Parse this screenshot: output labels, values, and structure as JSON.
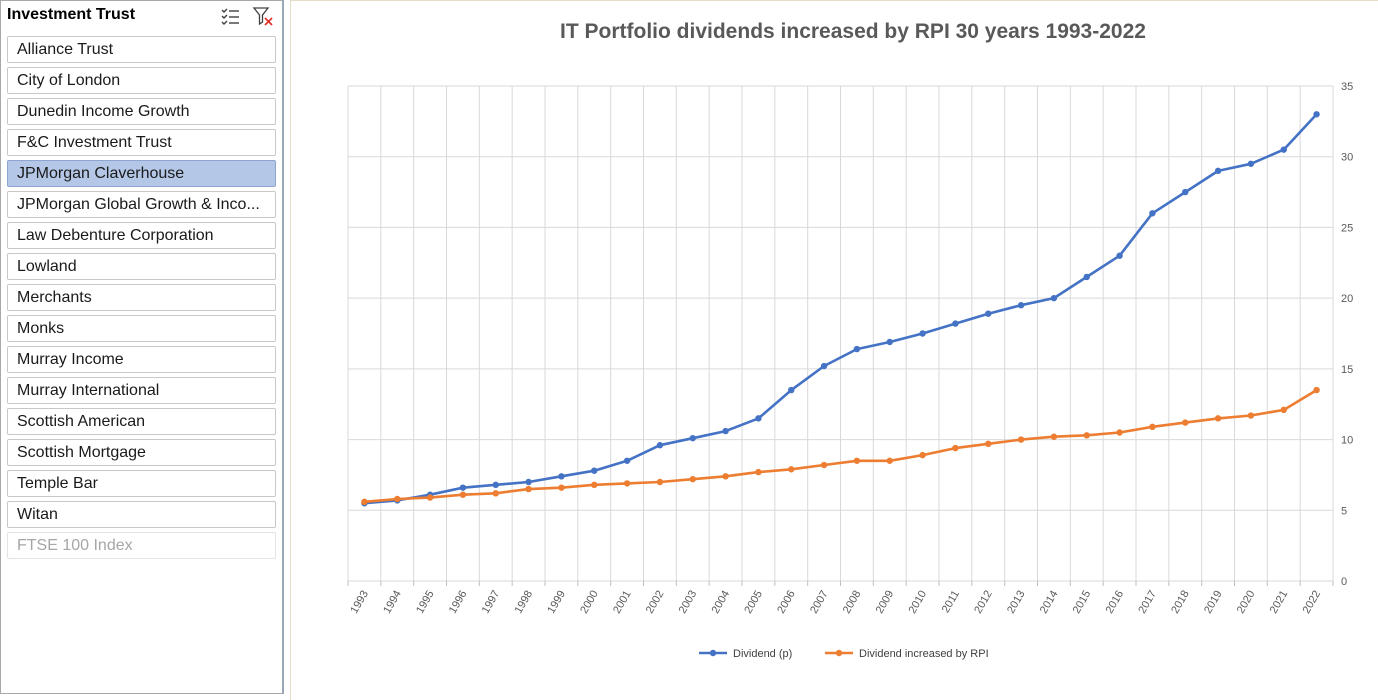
{
  "slicer": {
    "title": "Investment Trust",
    "multiselect_icon": "multi-select-icon",
    "clear_filter_icon": "clear-filter-icon",
    "items": [
      {
        "label": "Alliance Trust",
        "state": "normal"
      },
      {
        "label": "City of London",
        "state": "normal"
      },
      {
        "label": "Dunedin Income Growth",
        "state": "normal"
      },
      {
        "label": "F&C Investment Trust",
        "state": "normal"
      },
      {
        "label": "JPMorgan Claverhouse",
        "state": "selected"
      },
      {
        "label": "JPMorgan Global Growth & Inco...",
        "state": "normal"
      },
      {
        "label": "Law Debenture Corporation",
        "state": "normal"
      },
      {
        "label": "Lowland",
        "state": "normal"
      },
      {
        "label": "Merchants",
        "state": "normal"
      },
      {
        "label": "Monks",
        "state": "normal"
      },
      {
        "label": "Murray Income",
        "state": "normal"
      },
      {
        "label": "Murray International",
        "state": "normal"
      },
      {
        "label": "Scottish American",
        "state": "normal"
      },
      {
        "label": "Scottish Mortgage",
        "state": "normal"
      },
      {
        "label": "Temple Bar",
        "state": "normal"
      },
      {
        "label": "Witan",
        "state": "normal"
      },
      {
        "label": "FTSE 100 Index",
        "state": "nodata"
      }
    ]
  },
  "colors": {
    "series1": "#4472c4",
    "series2": "#ed7d31",
    "selected": "#b4c7e7",
    "grid": "#d9d9d9"
  },
  "chart_data": {
    "type": "line",
    "title": "IT Portfolio dividends increased by RPI 30 years 1993-2022",
    "categories": [
      "1993",
      "1994",
      "1995",
      "1996",
      "1997",
      "1998",
      "1999",
      "2000",
      "2001",
      "2002",
      "2003",
      "2004",
      "2005",
      "2006",
      "2007",
      "2008",
      "2009",
      "2010",
      "2011",
      "2012",
      "2013",
      "2014",
      "2015",
      "2016",
      "2017",
      "2018",
      "2019",
      "2020",
      "2021",
      "2022"
    ],
    "series": [
      {
        "name": "Dividend (p)",
        "values": [
          5.5,
          5.7,
          6.1,
          6.6,
          6.8,
          7.0,
          7.4,
          7.8,
          8.5,
          9.6,
          10.1,
          10.6,
          11.5,
          13.5,
          15.2,
          16.4,
          16.9,
          17.5,
          18.2,
          18.9,
          19.5,
          20.0,
          21.5,
          23.0,
          26.0,
          27.5,
          29.0,
          29.5,
          30.5,
          33.0
        ]
      },
      {
        "name": "Dividend increased by RPI",
        "values": [
          5.6,
          5.8,
          5.9,
          6.1,
          6.2,
          6.5,
          6.6,
          6.8,
          6.9,
          7.0,
          7.2,
          7.4,
          7.7,
          7.9,
          8.2,
          8.5,
          8.5,
          8.9,
          9.4,
          9.7,
          10.0,
          10.2,
          10.3,
          10.5,
          10.9,
          11.2,
          11.5,
          11.7,
          12.1,
          13.5
        ]
      }
    ],
    "y_axis": {
      "position": "right",
      "min": 0,
      "max": 35,
      "step": 5,
      "ticks": [
        "0",
        "5",
        "10",
        "15",
        "20",
        "25",
        "30",
        "35"
      ]
    },
    "grid": true,
    "legend": {
      "position": "bottom"
    }
  }
}
